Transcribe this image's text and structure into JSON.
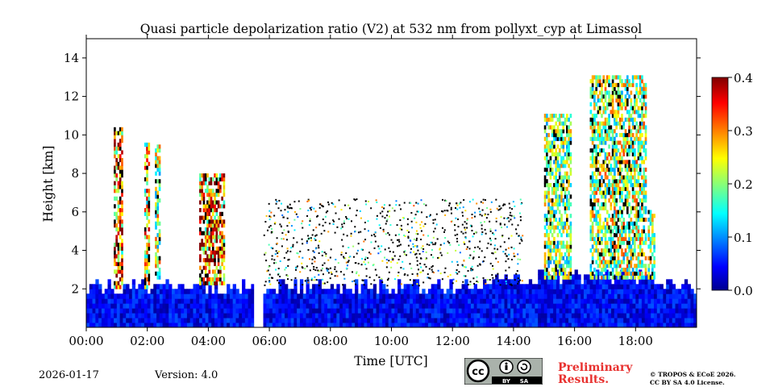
{
  "chart_data": {
    "type": "heatmap",
    "title": "Quasi particle depolarization ratio (V2) at 532 nm from pollyxt_cyp at Limassol",
    "xlabel": "Time [UTC]",
    "ylabel": "Height [km]",
    "xlim": [
      0,
      20
    ],
    "ylim": [
      0,
      15
    ],
    "x_ticks": [
      0,
      2,
      4,
      6,
      8,
      10,
      12,
      14,
      16,
      18
    ],
    "x_tick_labels": [
      "00:00",
      "02:00",
      "04:00",
      "06:00",
      "08:00",
      "10:00",
      "12:00",
      "14:00",
      "16:00",
      "18:00"
    ],
    "y_ticks": [
      2,
      4,
      6,
      8,
      10,
      12,
      14
    ],
    "y_tick_labels": [
      "2",
      "4",
      "6",
      "8",
      "10",
      "12",
      "14"
    ],
    "colorbar": {
      "min": 0.0,
      "max": 0.4,
      "ticks": [
        0.0,
        0.1,
        0.2,
        0.3,
        0.4
      ],
      "tick_labels": [
        "0.0",
        "0.1",
        "0.2",
        "0.3",
        "0.4"
      ],
      "colormap": "jet"
    },
    "data_gap": [
      5.5,
      5.7
    ],
    "features": [
      {
        "name": "boundary layer aerosol",
        "time": [
          0,
          20
        ],
        "height": [
          0,
          2.5
        ],
        "ratio": 0.08
      },
      {
        "name": "cirrus column ~01:00",
        "time": [
          0.9,
          1.15
        ],
        "height": [
          2,
          10.2
        ],
        "ratio": 0.3
      },
      {
        "name": "cirrus column ~02:00",
        "time": [
          1.9,
          2.05
        ],
        "height": [
          2,
          9.5
        ],
        "ratio": 0.25
      },
      {
        "name": "cirrus column ~02:20",
        "time": [
          2.25,
          2.4
        ],
        "height": [
          2.5,
          9.5
        ],
        "ratio": 0.22
      },
      {
        "name": "cloud ~04:00",
        "time": [
          3.7,
          4.5
        ],
        "height": [
          2.2,
          8
        ],
        "ratio": 0.32
      },
      {
        "name": "cloud band ~15:20",
        "time": [
          15.0,
          15.9
        ],
        "height": [
          2.5,
          11
        ],
        "ratio": 0.2
      },
      {
        "name": "cloud band ~17:00",
        "time": [
          16.5,
          18.3
        ],
        "height": [
          2.5,
          13
        ],
        "ratio": 0.22
      },
      {
        "name": "cloud column ~18:30",
        "time": [
          18.4,
          18.6
        ],
        "height": [
          2.5,
          6
        ],
        "ratio": 0.2
      }
    ]
  },
  "footer": {
    "date": "2026-01-17",
    "version": "Version: 4.0",
    "preliminary_line1": "Preliminary",
    "preliminary_line2": "Results.",
    "copyright_line1": "© TROPOS & ECoE 2026.",
    "copyright_line2": "CC BY SA 4.0 License.",
    "license_by": "BY",
    "license_sa": "SA",
    "license_cc": "cc"
  },
  "colors": {
    "low": "#1f3fd6",
    "mid": "#2ec9e8",
    "high": "#e83a10",
    "prelim": "#e8312f"
  }
}
